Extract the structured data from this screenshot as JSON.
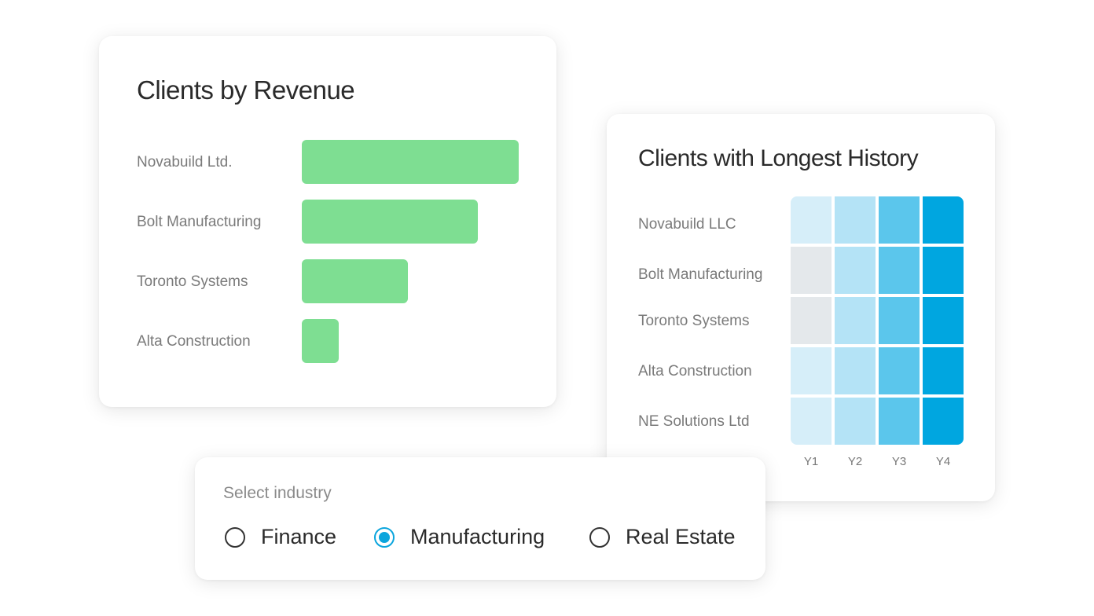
{
  "revenue_card": {
    "title": "Clients by Revenue",
    "bar_color": "#7ede92",
    "clients": [
      {
        "name": "Novabuild Ltd.",
        "relative_revenue": 100
      },
      {
        "name": "Bolt Manufacturing",
        "relative_revenue": 81
      },
      {
        "name": "Toronto Systems",
        "relative_revenue": 49
      },
      {
        "name": "Alta Construction",
        "relative_revenue": 17
      }
    ]
  },
  "history_card": {
    "title": "Clients with Longest History",
    "columns": [
      "Y1",
      "Y2",
      "Y3",
      "Y4"
    ],
    "level_colors": [
      "#e4e8eb",
      "#d6eef9",
      "#b4e3f6",
      "#5bc6ec",
      "#00a6e0"
    ],
    "rows": [
      {
        "name": "Novabuild LLC",
        "levels": [
          1,
          2,
          3,
          4
        ]
      },
      {
        "name": "Bolt Manufacturing",
        "levels": [
          0,
          2,
          3,
          4
        ]
      },
      {
        "name": "Toronto Systems",
        "levels": [
          0,
          2,
          3,
          4
        ]
      },
      {
        "name": "Alta Construction",
        "levels": [
          1,
          2,
          3,
          4
        ]
      },
      {
        "name": "NE Solutions Ltd",
        "levels": [
          1,
          2,
          3,
          4
        ]
      }
    ]
  },
  "industry_select": {
    "label": "Select industry",
    "options": [
      "Finance",
      "Manufacturing",
      "Real Estate"
    ],
    "selected": "Manufacturing",
    "accent": "#0ba5dd"
  }
}
